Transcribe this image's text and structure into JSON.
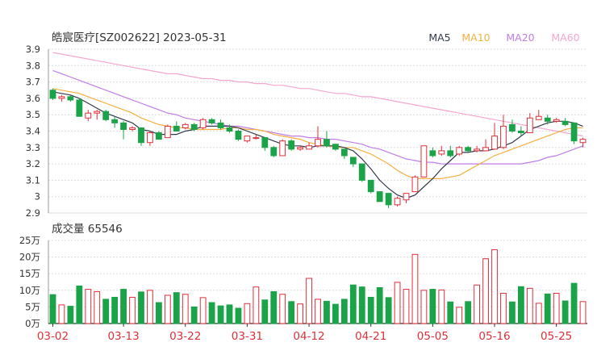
{
  "price_title": "皓宸医疗[SZ002622] 2023-05-31",
  "volume_label": "成交量 65546",
  "legend": [
    {
      "name": "MA5",
      "color": "#333a4d"
    },
    {
      "name": "MA10",
      "color": "#f5b041"
    },
    {
      "name": "MA20",
      "color": "#c07de8"
    },
    {
      "name": "MA60",
      "color": "#f3a7cf"
    }
  ],
  "colors": {
    "up": "#e0303a",
    "down": "#1aa348",
    "grid": "#dcdcdc",
    "axis": "#333333",
    "date": "#e0303a"
  },
  "chart_data": [
    {
      "type": "candlestick",
      "title": "皓宸医疗[SZ002622] 2023-05-31",
      "ylim": [
        2.9,
        3.9
      ],
      "y_ticks": [
        "3.9",
        "3.8",
        "3.7",
        "3.6",
        "3.5",
        "3.4",
        "3.3",
        "3.2",
        "3.1",
        "3",
        "2.9"
      ],
      "x_tick_labels": [
        {
          "index": 0,
          "label": "03-02"
        },
        {
          "index": 8,
          "label": "03-13"
        },
        {
          "index": 15,
          "label": "03-22"
        },
        {
          "index": 22,
          "label": "03-31"
        },
        {
          "index": 29,
          "label": "04-12"
        },
        {
          "index": 36,
          "label": "04-21"
        },
        {
          "index": 43,
          "label": "05-05"
        },
        {
          "index": 50,
          "label": "05-16"
        },
        {
          "index": 57,
          "label": "05-25"
        }
      ],
      "candles": [
        [
          3.65,
          3.6,
          3.66,
          3.59
        ],
        [
          3.6,
          3.61,
          3.62,
          3.58
        ],
        [
          3.61,
          3.59,
          3.62,
          3.58
        ],
        [
          3.59,
          3.49,
          3.6,
          3.49
        ],
        [
          3.48,
          3.51,
          3.53,
          3.46
        ],
        [
          3.51,
          3.52,
          3.53,
          3.47
        ],
        [
          3.52,
          3.47,
          3.53,
          3.46
        ],
        [
          3.47,
          3.45,
          3.49,
          3.42
        ],
        [
          3.45,
          3.41,
          3.46,
          3.35
        ],
        [
          3.41,
          3.42,
          3.43,
          3.4
        ],
        [
          3.42,
          3.33,
          3.42,
          3.31
        ],
        [
          3.33,
          3.39,
          3.4,
          3.31
        ],
        [
          3.39,
          3.35,
          3.4,
          3.35
        ],
        [
          3.36,
          3.43,
          3.44,
          3.36
        ],
        [
          3.43,
          3.4,
          3.46,
          3.4
        ],
        [
          3.42,
          3.44,
          3.45,
          3.41
        ],
        [
          3.44,
          3.41,
          3.45,
          3.4
        ],
        [
          3.42,
          3.47,
          3.48,
          3.41
        ],
        [
          3.47,
          3.45,
          3.48,
          3.44
        ],
        [
          3.45,
          3.42,
          3.47,
          3.41
        ],
        [
          3.42,
          3.4,
          3.44,
          3.39
        ],
        [
          3.4,
          3.35,
          3.41,
          3.34
        ],
        [
          3.34,
          3.37,
          3.37,
          3.33
        ],
        [
          3.36,
          3.36,
          3.38,
          3.35
        ],
        [
          3.36,
          3.3,
          3.36,
          3.28
        ],
        [
          3.3,
          3.25,
          3.31,
          3.24
        ],
        [
          3.25,
          3.34,
          3.35,
          3.25
        ],
        [
          3.34,
          3.29,
          3.35,
          3.28
        ],
        [
          3.29,
          3.3,
          3.31,
          3.28
        ],
        [
          3.29,
          3.31,
          3.33,
          3.29
        ],
        [
          3.31,
          3.35,
          3.43,
          3.3
        ],
        [
          3.35,
          3.31,
          3.4,
          3.3
        ],
        [
          3.32,
          3.29,
          3.32,
          3.28
        ],
        [
          3.29,
          3.25,
          3.29,
          3.23
        ],
        [
          3.24,
          3.2,
          3.24,
          3.18
        ],
        [
          3.2,
          3.1,
          3.2,
          3.09
        ],
        [
          3.1,
          3.03,
          3.1,
          3.02
        ],
        [
          3.03,
          2.97,
          3.03,
          2.97
        ],
        [
          3.02,
          2.95,
          3.02,
          2.93
        ],
        [
          2.95,
          2.99,
          3.0,
          2.94
        ],
        [
          2.98,
          3.02,
          3.02,
          2.96
        ],
        [
          3.03,
          3.12,
          3.13,
          3.03
        ],
        [
          3.12,
          3.31,
          3.31,
          3.12
        ],
        [
          3.28,
          3.25,
          3.3,
          3.24
        ],
        [
          3.26,
          3.28,
          3.31,
          3.25
        ],
        [
          3.28,
          3.25,
          3.31,
          3.24
        ],
        [
          3.26,
          3.3,
          3.31,
          3.25
        ],
        [
          3.3,
          3.28,
          3.31,
          3.27
        ],
        [
          3.28,
          3.29,
          3.31,
          3.27
        ],
        [
          3.28,
          3.3,
          3.35,
          3.28
        ],
        [
          3.29,
          3.37,
          3.45,
          3.29
        ],
        [
          3.3,
          3.43,
          3.5,
          3.29
        ],
        [
          3.44,
          3.4,
          3.47,
          3.39
        ],
        [
          3.4,
          3.39,
          3.43,
          3.37
        ],
        [
          3.39,
          3.48,
          3.51,
          3.39
        ],
        [
          3.47,
          3.49,
          3.53,
          3.47
        ],
        [
          3.48,
          3.46,
          3.5,
          3.44
        ],
        [
          3.46,
          3.47,
          3.48,
          3.45
        ],
        [
          3.46,
          3.44,
          3.48,
          3.43
        ],
        [
          3.45,
          3.34,
          3.45,
          3.32
        ],
        [
          3.33,
          3.35,
          3.36,
          3.3
        ]
      ],
      "ma5": [
        3.64,
        3.63,
        3.62,
        3.6,
        3.57,
        3.54,
        3.51,
        3.49,
        3.47,
        3.45,
        3.41,
        3.4,
        3.38,
        3.38,
        3.38,
        3.4,
        3.41,
        3.43,
        3.43,
        3.43,
        3.43,
        3.42,
        3.4,
        3.38,
        3.36,
        3.34,
        3.32,
        3.31,
        3.31,
        3.3,
        3.31,
        3.31,
        3.31,
        3.3,
        3.28,
        3.23,
        3.17,
        3.1,
        3.05,
        3.01,
        2.99,
        3.01,
        3.06,
        3.11,
        3.17,
        3.22,
        3.27,
        3.27,
        3.28,
        3.28,
        3.29,
        3.31,
        3.33,
        3.37,
        3.41,
        3.43,
        3.45,
        3.46,
        3.46,
        3.45,
        3.43
      ],
      "ma10": [
        3.66,
        3.65,
        3.64,
        3.63,
        3.61,
        3.59,
        3.57,
        3.55,
        3.53,
        3.51,
        3.48,
        3.46,
        3.44,
        3.43,
        3.42,
        3.42,
        3.41,
        3.41,
        3.41,
        3.41,
        3.42,
        3.42,
        3.41,
        3.41,
        3.4,
        3.38,
        3.37,
        3.36,
        3.35,
        3.33,
        3.32,
        3.31,
        3.3,
        3.3,
        3.3,
        3.28,
        3.26,
        3.23,
        3.2,
        3.16,
        3.13,
        3.11,
        3.11,
        3.11,
        3.11,
        3.12,
        3.13,
        3.16,
        3.19,
        3.22,
        3.25,
        3.27,
        3.29,
        3.31,
        3.33,
        3.35,
        3.37,
        3.39,
        3.41,
        3.42,
        3.42
      ],
      "ma20": [
        3.77,
        3.75,
        3.73,
        3.71,
        3.69,
        3.67,
        3.65,
        3.63,
        3.61,
        3.59,
        3.57,
        3.55,
        3.53,
        3.51,
        3.5,
        3.48,
        3.47,
        3.46,
        3.45,
        3.44,
        3.43,
        3.43,
        3.42,
        3.41,
        3.4,
        3.39,
        3.38,
        3.37,
        3.37,
        3.36,
        3.36,
        3.35,
        3.35,
        3.34,
        3.33,
        3.32,
        3.3,
        3.29,
        3.27,
        3.25,
        3.23,
        3.22,
        3.21,
        3.21,
        3.2,
        3.2,
        3.2,
        3.2,
        3.2,
        3.2,
        3.2,
        3.2,
        3.2,
        3.2,
        3.21,
        3.22,
        3.24,
        3.25,
        3.27,
        3.29,
        3.31
      ],
      "ma60": [
        3.88,
        3.87,
        3.86,
        3.85,
        3.84,
        3.83,
        3.82,
        3.81,
        3.8,
        3.79,
        3.78,
        3.77,
        3.76,
        3.75,
        3.75,
        3.74,
        3.73,
        3.72,
        3.72,
        3.71,
        3.71,
        3.7,
        3.7,
        3.69,
        3.69,
        3.68,
        3.68,
        3.67,
        3.66,
        3.66,
        3.65,
        3.64,
        3.63,
        3.63,
        3.62,
        3.61,
        3.61,
        3.6,
        3.59,
        3.58,
        3.57,
        3.56,
        3.55,
        3.54,
        3.53,
        3.52,
        3.51,
        3.5,
        3.49,
        3.48,
        3.47,
        3.46,
        3.45,
        3.44,
        3.43,
        3.42,
        3.41,
        3.4,
        3.39,
        3.38,
        3.37
      ]
    },
    {
      "type": "bar",
      "title": "成交量 65546",
      "ylim": [
        0,
        25
      ],
      "y_ticks": [
        "25万",
        "20万",
        "15万",
        "10万",
        "5万",
        "0万"
      ],
      "volumes": [
        8.7,
        5.6,
        5.2,
        11.3,
        10.3,
        9.6,
        7.3,
        7.9,
        10.3,
        7.9,
        9.5,
        10.0,
        6.3,
        8.5,
        9.3,
        8.8,
        5.0,
        7.8,
        6.3,
        5.3,
        5.6,
        4.6,
        6.0,
        11.0,
        7.1,
        9.6,
        8.8,
        6.6,
        5.9,
        13.6,
        7.3,
        6.7,
        5.8,
        7.3,
        11.6,
        11.0,
        7.9,
        10.8,
        7.8,
        12.4,
        10.3,
        20.8,
        10.0,
        10.3,
        10.1,
        6.5,
        4.9,
        6.6,
        11.6,
        19.5,
        22.2,
        9.1,
        6.5,
        11.1,
        10.6,
        6.1,
        8.9,
        9.1,
        6.8,
        12.1,
        6.6
      ]
    }
  ]
}
